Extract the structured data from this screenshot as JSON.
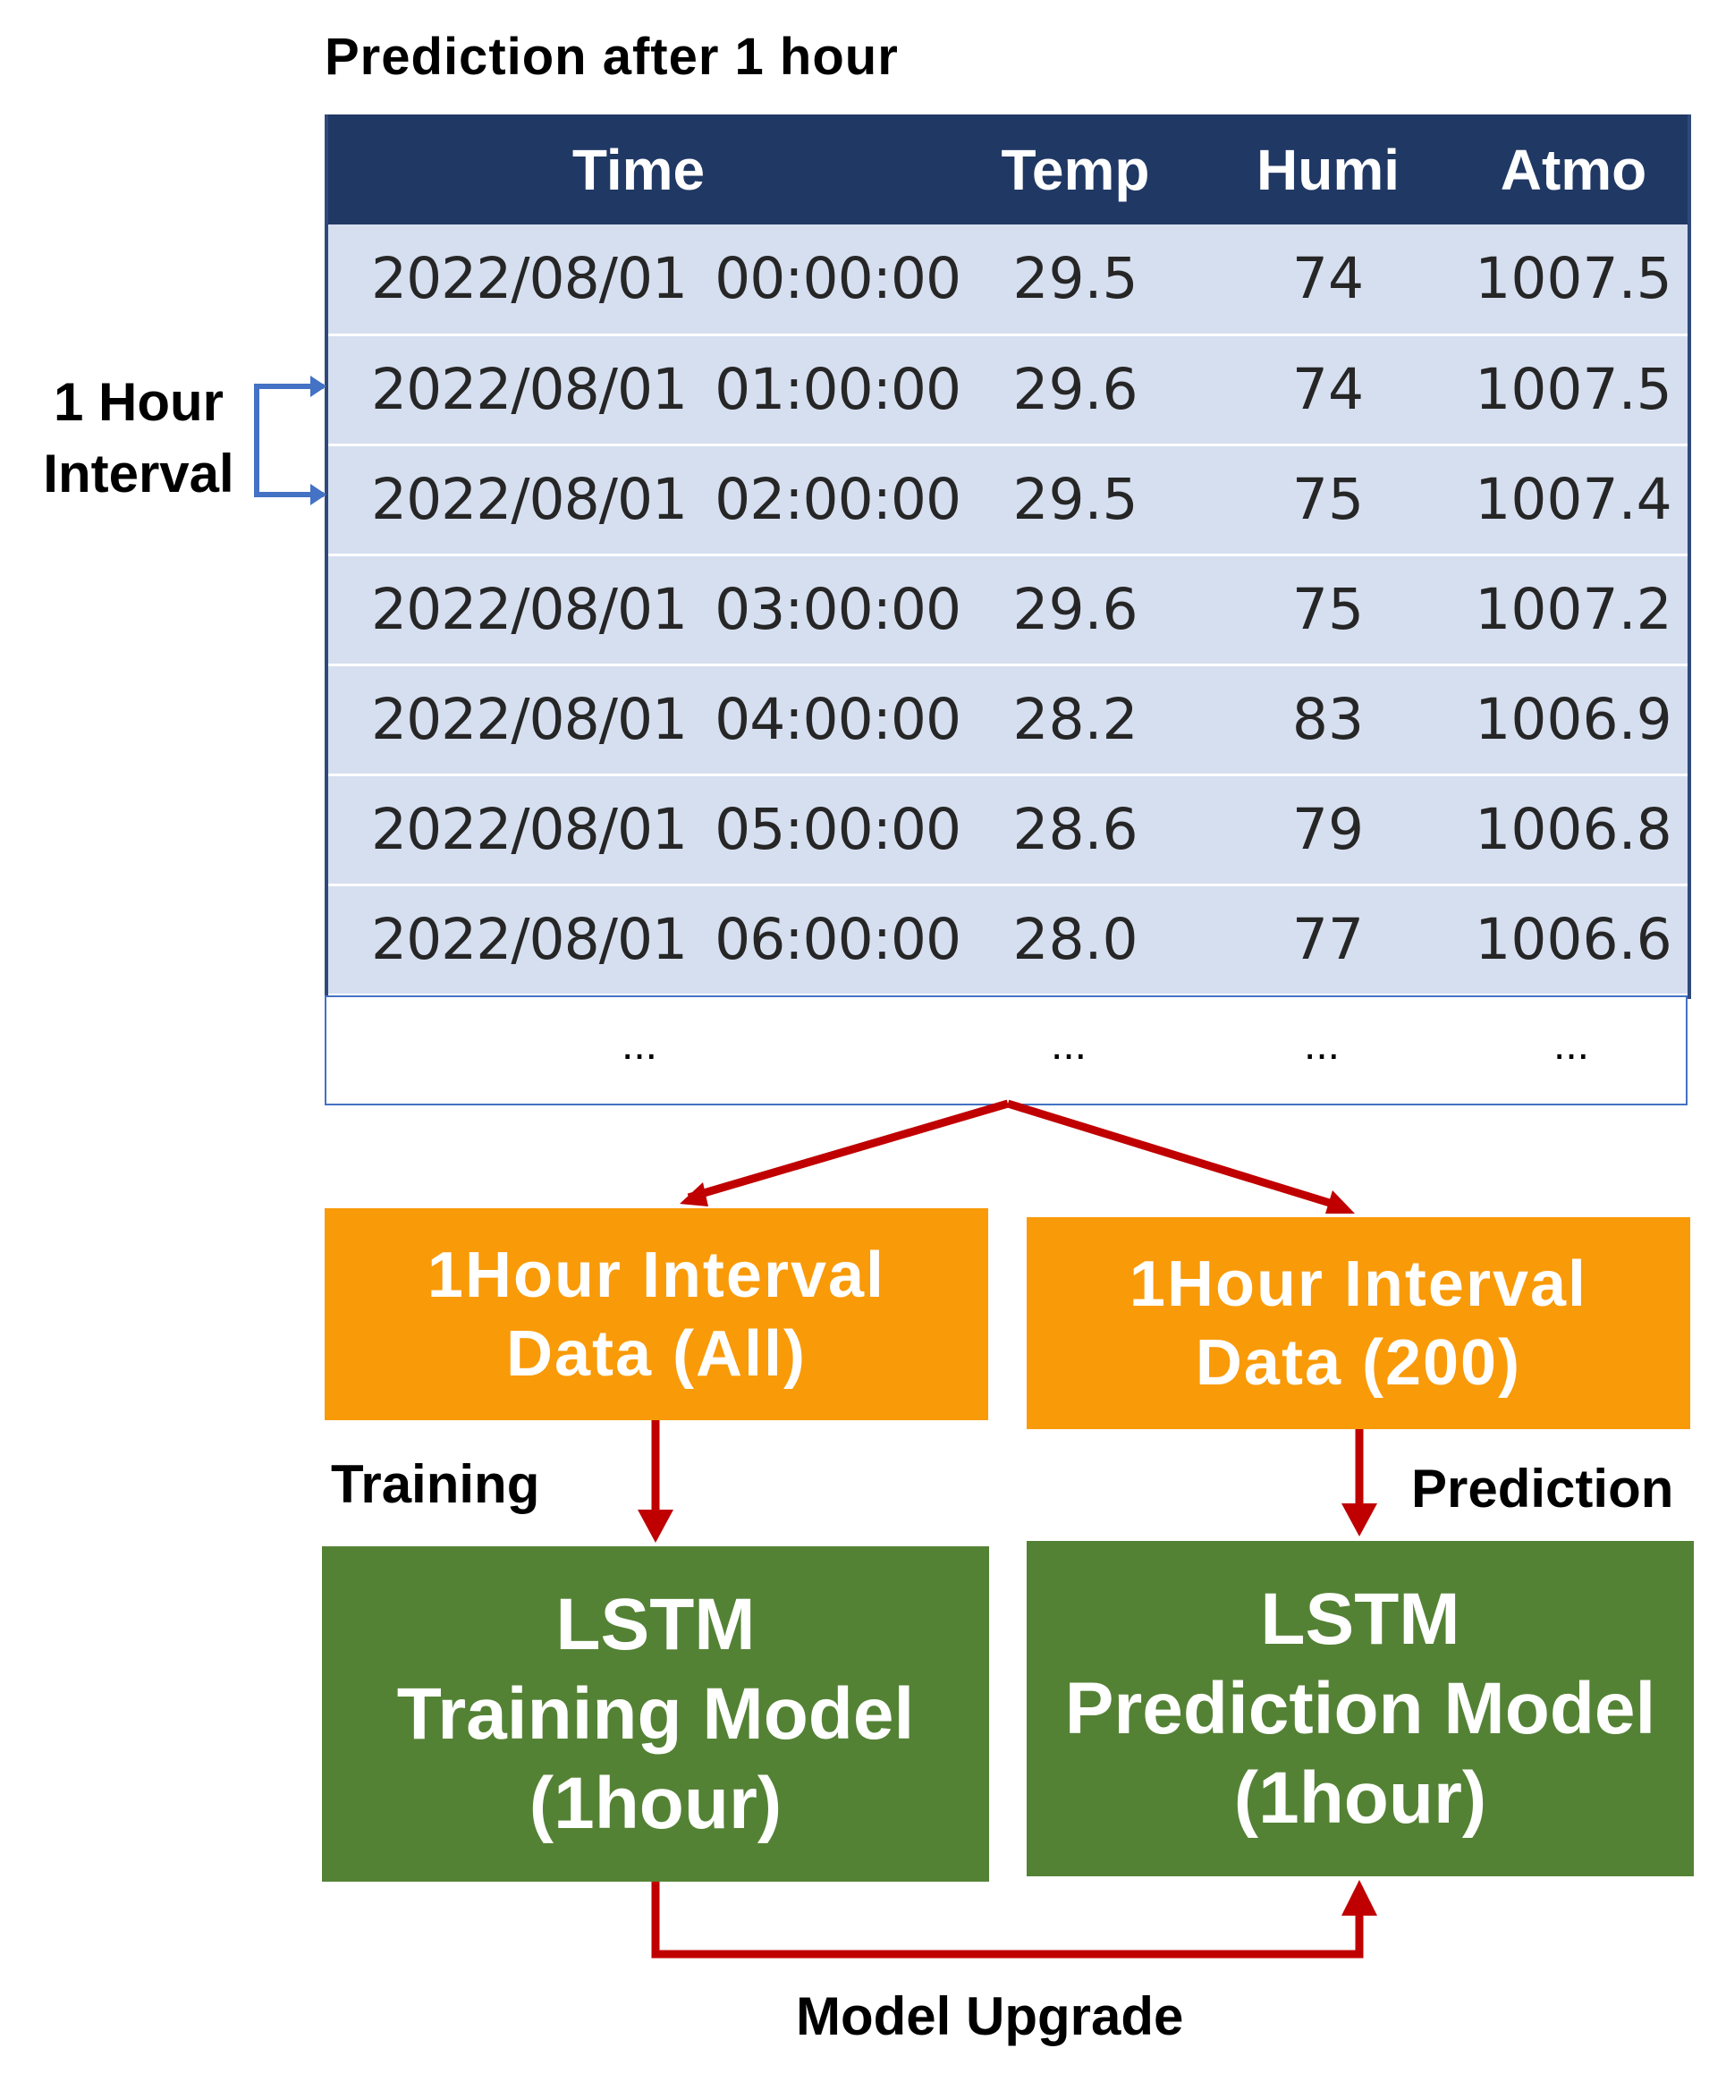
{
  "title": "Prediction after 1 hour",
  "table": {
    "headers": [
      "Time",
      "Temp",
      "Humi",
      "Atmo"
    ],
    "rows": [
      [
        "2022/08/01  00:00:00",
        "29.5",
        "74",
        "1007.5"
      ],
      [
        "2022/08/01  01:00:00",
        "29.6",
        "74",
        "1007.5"
      ],
      [
        "2022/08/01  02:00:00",
        "29.5",
        "75",
        "1007.4"
      ],
      [
        "2022/08/01  03:00:00",
        "29.6",
        "75",
        "1007.2"
      ],
      [
        "2022/08/01  04:00:00",
        "28.2",
        "83",
        "1006.9"
      ],
      [
        "2022/08/01  05:00:00",
        "28.6",
        "79",
        "1006.8"
      ],
      [
        "2022/08/01  06:00:00",
        "28.0",
        "77",
        "1006.6"
      ]
    ],
    "ellipsis": [
      "...",
      "...",
      "...",
      "..."
    ]
  },
  "interval_label": {
    "line1": "1 Hour",
    "line2": "Interval"
  },
  "boxes": {
    "data_all": {
      "line1": "1Hour Interval",
      "line2": "Data (All)"
    },
    "data_200": {
      "line1": "1Hour Interval",
      "line2": "Data (200)"
    },
    "training_model": {
      "line1": "LSTM",
      "line2": "Training Model",
      "line3": "(1hour)"
    },
    "prediction_model": {
      "line1": "LSTM",
      "line2": "Prediction Model",
      "line3": "(1hour)"
    }
  },
  "labels": {
    "training": "Training",
    "prediction": "Prediction",
    "model_upgrade": "Model Upgrade"
  },
  "colors": {
    "header": "#203864",
    "row": "#d6dff0",
    "orange": "#f99a09",
    "green": "#548235",
    "arrow_red": "#c00000",
    "bracket_blue": "#4472c4"
  }
}
